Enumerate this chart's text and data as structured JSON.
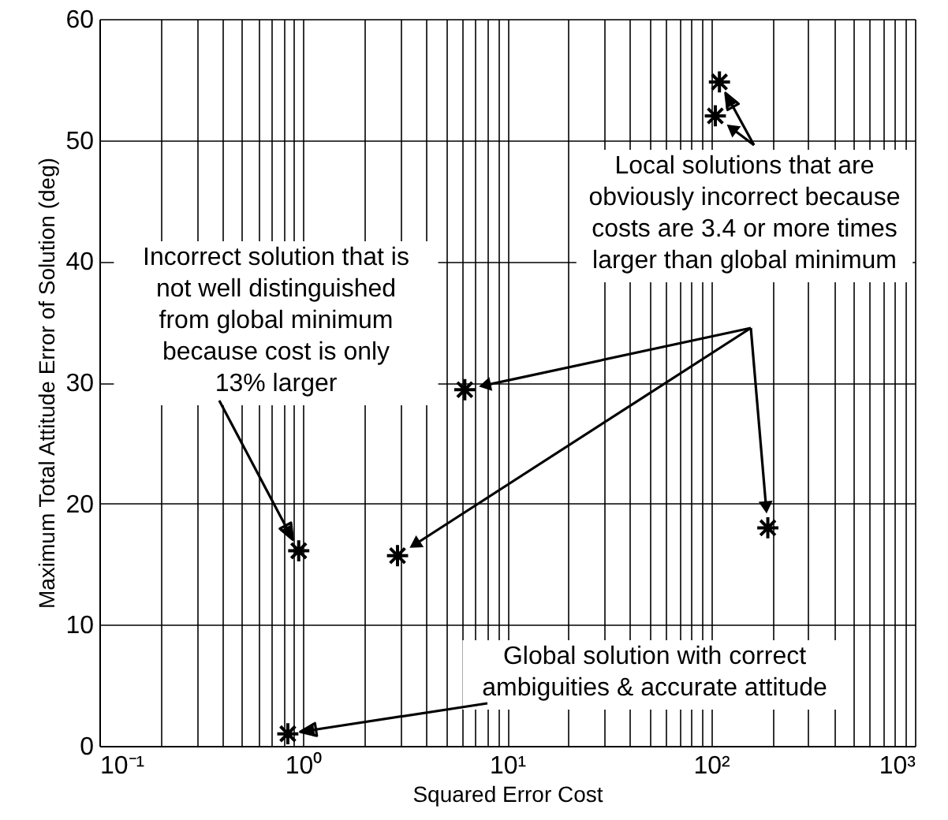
{
  "chart_data": {
    "type": "scatter",
    "xlabel": "Squared Error Cost",
    "ylabel": "Maximum Total Attitude Error of Solution (deg)",
    "x": [
      0.84,
      0.95,
      2.9,
      6.2,
      105,
      110,
      190
    ],
    "values": [
      1.0,
      16.1,
      15.7,
      29.4,
      52.0,
      54.8,
      18.0
    ],
    "color": "#000000",
    "marker": "cross",
    "log": "x",
    "xlim": [
      0.1,
      1000
    ],
    "ylim": [
      0,
      60
    ],
    "xticks": [
      {
        "value": 0.1,
        "label": "10⁻¹"
      },
      {
        "value": 0.2,
        "label": null
      },
      {
        "value": 0.3,
        "label": null
      },
      {
        "value": 0.4,
        "label": null
      },
      {
        "value": 0.5,
        "label": null
      },
      {
        "value": 0.6,
        "label": null
      },
      {
        "value": 0.7,
        "label": null
      },
      {
        "value": 0.8,
        "label": null
      },
      {
        "value": 0.9,
        "label": null
      },
      {
        "value": 1,
        "label": "10⁰"
      },
      {
        "value": 2,
        "label": null
      },
      {
        "value": 3,
        "label": null
      },
      {
        "value": 4,
        "label": null
      },
      {
        "value": 5,
        "label": null
      },
      {
        "value": 6,
        "label": null
      },
      {
        "value": 7,
        "label": null
      },
      {
        "value": 8,
        "label": null
      },
      {
        "value": 9,
        "label": null
      },
      {
        "value": 10,
        "label": "10¹"
      },
      {
        "value": 20,
        "label": null
      },
      {
        "value": 30,
        "label": null
      },
      {
        "value": 40,
        "label": null
      },
      {
        "value": 50,
        "label": null
      },
      {
        "value": 60,
        "label": null
      },
      {
        "value": 70,
        "label": null
      },
      {
        "value": 80,
        "label": null
      },
      {
        "value": 90,
        "label": null
      },
      {
        "value": 100,
        "label": "10²"
      },
      {
        "value": 200,
        "label": null
      },
      {
        "value": 300,
        "label": null
      },
      {
        "value": 400,
        "label": null
      },
      {
        "value": 500,
        "label": null
      },
      {
        "value": 600,
        "label": null
      },
      {
        "value": 700,
        "label": null
      },
      {
        "value": 800,
        "label": null
      },
      {
        "value": 900,
        "label": null
      },
      {
        "value": 1000,
        "label": "10³"
      }
    ],
    "yticks": [
      0,
      10,
      20,
      30,
      40,
      50,
      60
    ],
    "grid": true,
    "annotations": [
      {
        "text": "Incorrect solution that is\nnot well distinguished\nfrom global minimum\nbecause cost is only\n13% larger",
        "x": 0.95,
        "y": 16.1
      },
      {
        "text": "Local solutions that are\nobviously incorrect because\ncosts are 3.4 or more times\nlarger than global minimum",
        "x": 110,
        "y": 54.8
      },
      {
        "text": "Global solution with correct\nambiguities & accurate attitude",
        "x": 0.84,
        "y": 1.0
      }
    ]
  }
}
